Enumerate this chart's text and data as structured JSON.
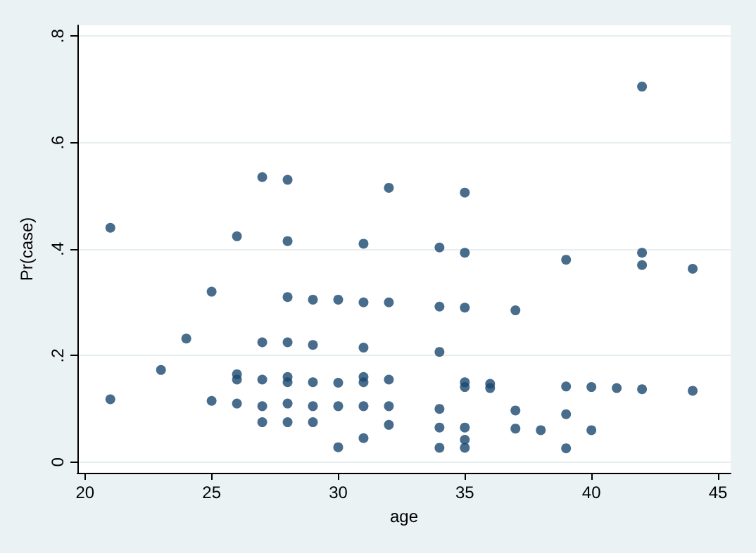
{
  "chart_data": {
    "type": "scatter",
    "xlabel": "age",
    "ylabel": "Pr(case)",
    "marker": "circle",
    "grid": "y",
    "xlim": [
      19.7,
      45.5
    ],
    "ylim": [
      -0.02,
      0.82
    ],
    "xticks": [
      20,
      25,
      30,
      35,
      40,
      45
    ],
    "yticks": [
      {
        "value": 0,
        "label": "0"
      },
      {
        "value": 0.2,
        "label": ".2"
      },
      {
        "value": 0.4,
        "label": ".4"
      },
      {
        "value": 0.6,
        "label": ".6"
      },
      {
        "value": 0.8,
        "label": ".8"
      }
    ],
    "series": [
      {
        "color": "#1a476f",
        "x": [
          21,
          21,
          23,
          24,
          25,
          25,
          26,
          26,
          26,
          26,
          27,
          27,
          27,
          27,
          27,
          28,
          28,
          28,
          28,
          28,
          28,
          28,
          28,
          29,
          29,
          29,
          29,
          29,
          30,
          30,
          30,
          30,
          31,
          31,
          31,
          31,
          31,
          31,
          31,
          32,
          32,
          32,
          32,
          32,
          34,
          34,
          34,
          34,
          34,
          34,
          35,
          35,
          35,
          35,
          35,
          35,
          35,
          35,
          36,
          36,
          37,
          37,
          37,
          38,
          39,
          39,
          39,
          39,
          40,
          40,
          41,
          42,
          42,
          42,
          42,
          44,
          44
        ],
        "values": [
          0.44,
          0.118,
          0.173,
          0.232,
          0.32,
          0.115,
          0.424,
          0.165,
          0.155,
          0.11,
          0.535,
          0.225,
          0.155,
          0.105,
          0.075,
          0.53,
          0.415,
          0.31,
          0.225,
          0.16,
          0.15,
          0.11,
          0.075,
          0.305,
          0.22,
          0.15,
          0.105,
          0.075,
          0.305,
          0.149,
          0.105,
          0.028,
          0.41,
          0.3,
          0.215,
          0.16,
          0.15,
          0.105,
          0.045,
          0.515,
          0.3,
          0.155,
          0.105,
          0.07,
          0.403,
          0.292,
          0.207,
          0.1,
          0.065,
          0.027,
          0.506,
          0.393,
          0.29,
          0.15,
          0.141,
          0.065,
          0.042,
          0.027,
          0.147,
          0.139,
          0.285,
          0.097,
          0.063,
          0.06,
          0.38,
          0.142,
          0.09,
          0.026,
          0.141,
          0.06,
          0.139,
          0.705,
          0.393,
          0.37,
          0.137,
          0.363,
          0.134
        ]
      }
    ]
  }
}
